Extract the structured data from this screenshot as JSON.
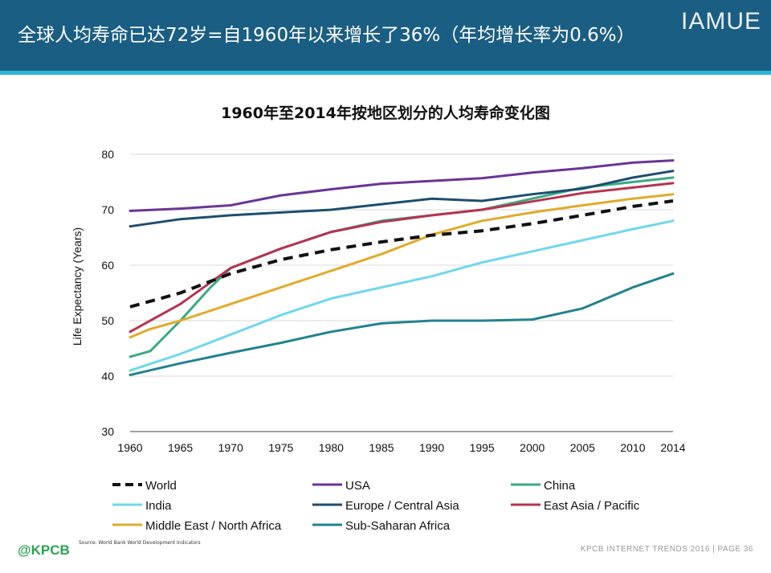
{
  "header": {
    "title": "全球人均寿命已达72岁=自1960年以来增长了36%（年均增长率为0.6%）",
    "brand": "IAMUE"
  },
  "colors": {
    "header_bg": "#1b5e83",
    "header_stripe": "#2fb3d5"
  },
  "chart_data": {
    "type": "line",
    "title": "1960年至2014年按地区划分的人均寿命变化图",
    "xlabel": "",
    "ylabel": "Life Expectancy (Years)",
    "xlim": [
      1960,
      2014
    ],
    "ylim": [
      30,
      80
    ],
    "x_ticks": [
      "1960",
      "1965",
      "1970",
      "1975",
      "1980",
      "1985",
      "1990",
      "1995",
      "2000",
      "2005",
      "2010",
      "2014"
    ],
    "y_ticks": [
      "30",
      "40",
      "50",
      "60",
      "70",
      "80"
    ],
    "grid": "horizontal",
    "legend_position": "bottom",
    "series": [
      {
        "name": "World",
        "color": "#111111",
        "dashed": true,
        "x": [
          1960,
          1965,
          1970,
          1975,
          1980,
          1985,
          1990,
          1995,
          2000,
          2005,
          2010,
          2014
        ],
        "values": [
          52.5,
          55.0,
          58.5,
          61.0,
          62.8,
          64.2,
          65.4,
          66.2,
          67.5,
          69.0,
          70.6,
          71.6
        ]
      },
      {
        "name": "USA",
        "color": "#6a3596",
        "dashed": false,
        "x": [
          1960,
          1965,
          1970,
          1975,
          1980,
          1985,
          1990,
          1995,
          2000,
          2005,
          2010,
          2014
        ],
        "values": [
          69.8,
          70.2,
          70.8,
          72.6,
          73.7,
          74.7,
          75.2,
          75.7,
          76.7,
          77.5,
          78.5,
          78.9
        ]
      },
      {
        "name": "China",
        "color": "#3aaa82",
        "dashed": false,
        "x": [
          1960,
          1962,
          1965,
          1968,
          1970,
          1975,
          1980,
          1985,
          1990,
          1995,
          2000,
          2005,
          2010,
          2014
        ],
        "values": [
          43.5,
          44.5,
          50.0,
          56.0,
          59.5,
          63.0,
          66.0,
          68.0,
          69.0,
          70.0,
          72.0,
          74.0,
          75.0,
          75.8
        ]
      },
      {
        "name": "India",
        "color": "#6fd8ec",
        "dashed": false,
        "x": [
          1960,
          1965,
          1970,
          1975,
          1980,
          1985,
          1990,
          1995,
          2000,
          2005,
          2010,
          2014
        ],
        "values": [
          41.0,
          44.0,
          47.5,
          51.0,
          54.0,
          56.0,
          58.0,
          60.5,
          62.5,
          64.5,
          66.5,
          68.0
        ]
      },
      {
        "name": "Europe / Central Asia",
        "color": "#1d4e6e",
        "dashed": false,
        "x": [
          1960,
          1965,
          1970,
          1975,
          1980,
          1985,
          1990,
          1995,
          2000,
          2005,
          2010,
          2014
        ],
        "values": [
          67.0,
          68.3,
          69.0,
          69.5,
          70.0,
          71.0,
          72.0,
          71.6,
          72.8,
          73.8,
          75.8,
          77.0
        ]
      },
      {
        "name": "East Asia / Pacific",
        "color": "#b5344f",
        "dashed": false,
        "x": [
          1960,
          1965,
          1970,
          1975,
          1980,
          1985,
          1990,
          1995,
          2000,
          2005,
          2010,
          2014
        ],
        "values": [
          48.0,
          53.0,
          59.5,
          63.0,
          66.0,
          67.8,
          69.0,
          70.0,
          71.5,
          73.0,
          74.0,
          74.8
        ]
      },
      {
        "name": "Middle East / North Africa",
        "color": "#e0ab2a",
        "dashed": false,
        "x": [
          1960,
          1962,
          1965,
          1970,
          1975,
          1980,
          1985,
          1990,
          1995,
          2000,
          2005,
          2010,
          2014
        ],
        "values": [
          47.0,
          48.5,
          50.0,
          53.0,
          56.0,
          59.0,
          62.0,
          65.5,
          68.0,
          69.5,
          70.8,
          72.0,
          72.8
        ]
      },
      {
        "name": "Sub-Saharan Africa",
        "color": "#23828f",
        "dashed": false,
        "x": [
          1960,
          1965,
          1970,
          1975,
          1980,
          1985,
          1990,
          1995,
          2000,
          2005,
          2010,
          2014
        ],
        "values": [
          40.2,
          42.3,
          44.2,
          46.0,
          48.0,
          49.5,
          50.0,
          50.0,
          50.2,
          52.2,
          56.0,
          58.5
        ]
      }
    ],
    "legend": {
      "rows": [
        [
          "World",
          "USA",
          "China"
        ],
        [
          "India",
          "Europe / Central Asia",
          "East Asia / Pacific"
        ],
        [
          "Middle East / North Africa",
          "Sub-Saharan Africa"
        ]
      ]
    }
  },
  "source": "Source: World Bank World Development Indicators",
  "footer": {
    "logo": "@KPCB",
    "text": "KPCB INTERNET TRENDS 2016  |  PAGE 36"
  }
}
